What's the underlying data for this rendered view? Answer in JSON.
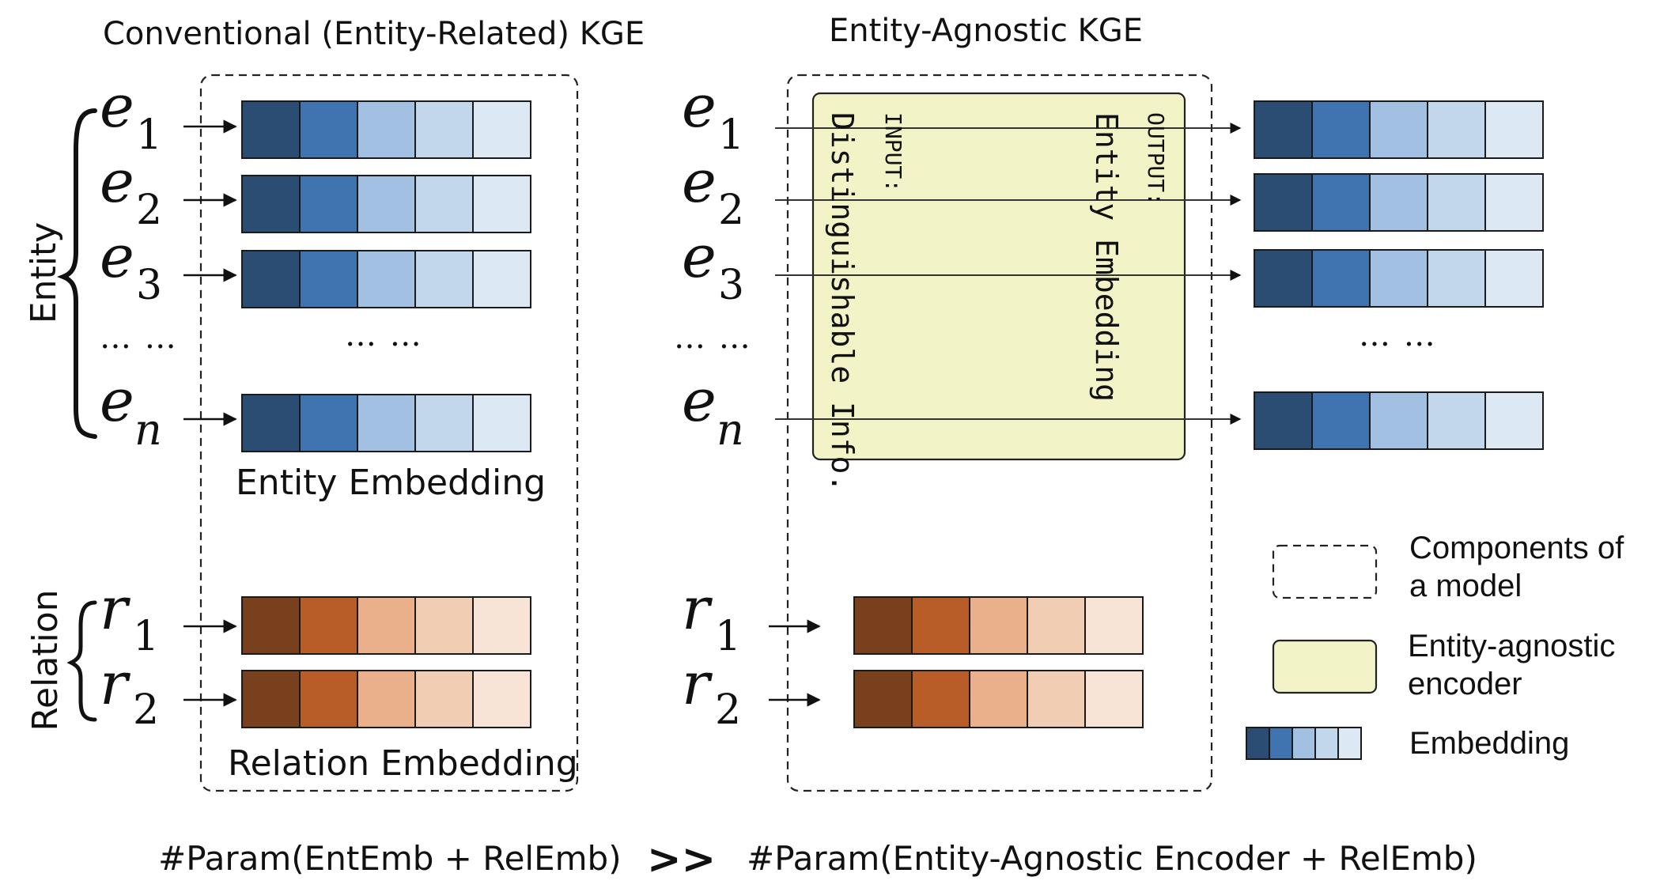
{
  "titles": {
    "left": "Conventional (Entity-Related) KGE",
    "right": "Entity-Agnostic KGE"
  },
  "side_labels": {
    "entity": "Entity",
    "relation": "Relation"
  },
  "entity_symbols": [
    "e1",
    "e2",
    "e3",
    "en"
  ],
  "relation_symbols": [
    "r1",
    "r2"
  ],
  "dots": "… …",
  "left_panel": {
    "entity_embedding_label": "Entity Embedding",
    "relation_embedding_label": "Relation Embedding"
  },
  "encoder": {
    "input_label": "INPUT:",
    "input_text": "Distinguishable Info.",
    "output_label": "OUTPUT:",
    "output_text": "Entity Embedding"
  },
  "legend": {
    "components": "Components of\na model",
    "encoder": "Entity-agnostic\nencoder",
    "embedding": "Embedding"
  },
  "footer": {
    "left": "#Param(EntEmb + RelEmb)",
    "comparator": ">>",
    "right": "#Param(Entity-Agnostic Encoder + RelEmb)"
  },
  "colors": {
    "entity_embedding": [
      "#2b4c73",
      "#3f74b0",
      "#a2c1e2",
      "#c3d7ec",
      "#dde8f5"
    ],
    "relation_embedding": [
      "#78401c",
      "#b85d28",
      "#eab08b",
      "#f1cdb3",
      "#f7e4d6"
    ],
    "encoder_fill": "#f2f3c6"
  }
}
